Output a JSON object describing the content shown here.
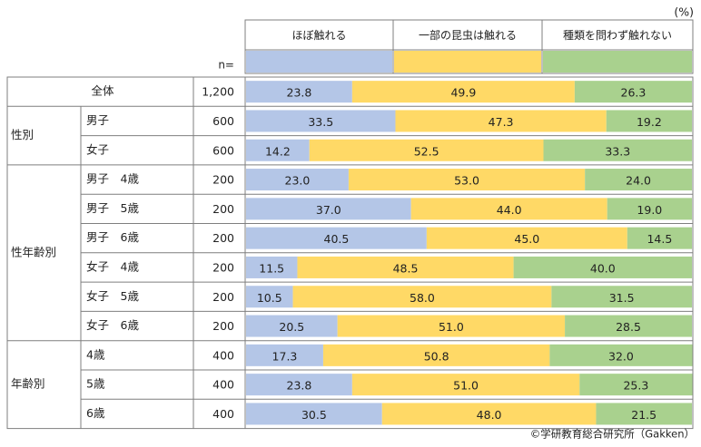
{
  "chart_data": {
    "type": "bar",
    "orientation": "horizontal",
    "stacked": true,
    "percent_stacked": true,
    "unit_label": "(%)",
    "n_label": "n=",
    "xlim": [
      0,
      100
    ],
    "series": [
      {
        "name": "ほぼ触れる",
        "color": "#b4c6e7"
      },
      {
        "name": "一部の昆虫は触れる",
        "color": "#ffd966"
      },
      {
        "name": "種類を問わず触れない",
        "color": "#a9d18e"
      }
    ],
    "rows": [
      {
        "group": "",
        "label": "全体",
        "n": "1,200",
        "values": [
          23.8,
          49.9,
          26.3
        ],
        "labels": [
          "23.8",
          "49.9",
          "26.3"
        ]
      },
      {
        "group": "性別",
        "label": "男子",
        "n": "600",
        "values": [
          33.5,
          47.3,
          19.2
        ],
        "labels": [
          "33.5",
          "47.3",
          "19.2"
        ]
      },
      {
        "group": "性別",
        "label": "女子",
        "n": "600",
        "values": [
          14.2,
          52.5,
          33.3
        ],
        "labels": [
          "14.2",
          "52.5",
          "33.3"
        ]
      },
      {
        "group": "性年齢別",
        "label": "男子　4歳",
        "n": "200",
        "values": [
          23.0,
          53.0,
          24.0
        ],
        "labels": [
          "23.0",
          "53.0",
          "24.0"
        ]
      },
      {
        "group": "性年齢別",
        "label": "男子　5歳",
        "n": "200",
        "values": [
          37.0,
          44.0,
          19.0
        ],
        "labels": [
          "37.0",
          "44.0",
          "19.0"
        ]
      },
      {
        "group": "性年齢別",
        "label": "男子　6歳",
        "n": "200",
        "values": [
          40.5,
          45.0,
          14.5
        ],
        "labels": [
          "40.5",
          "45.0",
          "14.5"
        ]
      },
      {
        "group": "性年齢別",
        "label": "女子　4歳",
        "n": "200",
        "values": [
          11.5,
          48.5,
          40.0
        ],
        "labels": [
          "11.5",
          "48.5",
          "40.0"
        ]
      },
      {
        "group": "性年齢別",
        "label": "女子　5歳",
        "n": "200",
        "values": [
          10.5,
          58.0,
          31.5
        ],
        "labels": [
          "10.5",
          "58.0",
          "31.5"
        ]
      },
      {
        "group": "性年齢別",
        "label": "女子　6歳",
        "n": "200",
        "values": [
          20.5,
          51.0,
          28.5
        ],
        "labels": [
          "20.5",
          "51.0",
          "28.5"
        ]
      },
      {
        "group": "年齢別",
        "label": "4歳",
        "n": "400",
        "values": [
          17.3,
          50.8,
          32.0
        ],
        "labels": [
          "17.3",
          "50.8",
          "32.0"
        ]
      },
      {
        "group": "年齢別",
        "label": "5歳",
        "n": "400",
        "values": [
          23.8,
          51.0,
          25.3
        ],
        "labels": [
          "23.8",
          "51.0",
          "25.3"
        ]
      },
      {
        "group": "年齢別",
        "label": "6歳",
        "n": "400",
        "values": [
          30.5,
          48.0,
          21.5
        ],
        "labels": [
          "30.5",
          "48.0",
          "21.5"
        ]
      }
    ],
    "source": "©学研教育総合研究所（Gakken）"
  }
}
